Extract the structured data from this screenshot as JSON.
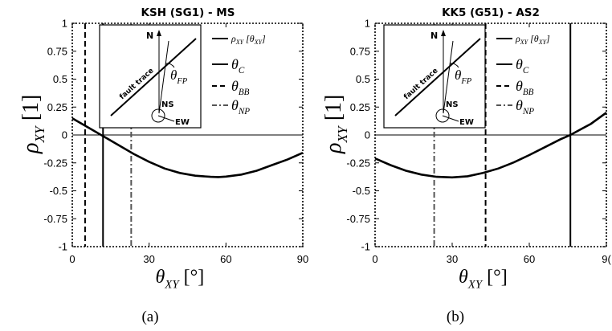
{
  "chart_data": [
    {
      "type": "line",
      "title": "KSH (SG1) - MS",
      "xlabel": "θXY [°]",
      "ylabel": "ρXY [1]",
      "xlim": [
        0,
        90
      ],
      "ylim": [
        -1,
        1
      ],
      "xticks": [
        "0",
        "30",
        "60",
        "90"
      ],
      "yticks": [
        "1",
        "0.75",
        "0.5",
        "0.25",
        "0",
        "-0.25",
        "-0.5",
        "-0.75",
        "-1"
      ],
      "grid": false,
      "legend_placement": "top-right",
      "series": [
        {
          "name": "ρXY [θXY]",
          "x": [
            0,
            6,
            12,
            18,
            24,
            30,
            36,
            42,
            48,
            54,
            57,
            60,
            66,
            72,
            78,
            84,
            90
          ],
          "y": [
            0.15,
            0.07,
            -0.01,
            -0.09,
            -0.17,
            -0.24,
            -0.3,
            -0.34,
            -0.365,
            -0.375,
            -0.377,
            -0.373,
            -0.355,
            -0.32,
            -0.27,
            -0.22,
            -0.16
          ]
        }
      ],
      "vlines": [
        {
          "name": "θC",
          "x": 12,
          "style": "solid"
        },
        {
          "name": "θBB",
          "x": 5,
          "style": "dashed"
        },
        {
          "name": "θNP",
          "x": 23,
          "style": "dashed-gray"
        }
      ],
      "inset": {
        "labels": [
          "N",
          "fault trace",
          "θFP",
          "NS",
          "EW"
        ]
      },
      "caption": "(a)"
    },
    {
      "type": "line",
      "title": "KK5 (G51) - AS2",
      "xlabel": "θXY [°]",
      "ylabel": "ρXY [1]",
      "xlim": [
        0,
        90
      ],
      "ylim": [
        -1,
        1
      ],
      "xticks": [
        "0",
        "30",
        "60",
        "9("
      ],
      "yticks": [
        "1",
        "0.75",
        "0.5",
        "0.25",
        "0",
        "-0.25",
        "-0.5",
        "-0.75",
        "-1"
      ],
      "grid": false,
      "legend_placement": "top-right",
      "series": [
        {
          "name": "ρXY [θXY]",
          "x": [
            0,
            6,
            12,
            18,
            24,
            30,
            36,
            42,
            48,
            54,
            60,
            66,
            72,
            76,
            80,
            84,
            90
          ],
          "y": [
            -0.21,
            -0.27,
            -0.32,
            -0.355,
            -0.375,
            -0.38,
            -0.37,
            -0.34,
            -0.3,
            -0.245,
            -0.18,
            -0.11,
            -0.04,
            0.0,
            0.05,
            0.1,
            0.2
          ]
        }
      ],
      "vlines": [
        {
          "name": "θC",
          "x": 76,
          "style": "solid"
        },
        {
          "name": "θBB",
          "x": 43,
          "style": "dashed"
        },
        {
          "name": "θNP",
          "x": 23,
          "style": "dashed-gray"
        }
      ],
      "inset": {
        "labels": [
          "N",
          "fault trace",
          "θFP",
          "NS",
          "EW"
        ]
      },
      "caption": "(b)"
    }
  ],
  "colors": {
    "curve": "#000000",
    "np_line": "#555555",
    "background": "#ffffff"
  }
}
